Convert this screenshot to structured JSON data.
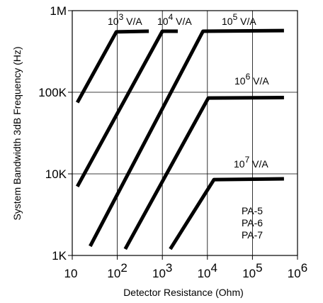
{
  "chart_data": {
    "type": "line",
    "x_scale": "log",
    "y_scale": "log",
    "xlim": [
      10,
      1000000
    ],
    "ylim": [
      1000,
      1000000
    ],
    "grid": true,
    "xlabel": "Detector Resistance (Ohm)",
    "ylabel": "System Bandwidth 3dB Frequency (Hz)",
    "x_ticks": [
      {
        "value": 10,
        "base": "10",
        "exp": ""
      },
      {
        "value": 100,
        "base": "10",
        "exp": "2"
      },
      {
        "value": 1000,
        "base": "10",
        "exp": "3"
      },
      {
        "value": 10000,
        "base": "10",
        "exp": "4"
      },
      {
        "value": 100000,
        "base": "10",
        "exp": "5"
      },
      {
        "value": 1000000,
        "base": "10",
        "exp": "6"
      }
    ],
    "y_ticks": [
      {
        "value": 1000,
        "label": "1K"
      },
      {
        "value": 10000,
        "label": "10K"
      },
      {
        "value": 100000,
        "label": "100K"
      },
      {
        "value": 1000000,
        "label": "1M"
      }
    ],
    "series": [
      {
        "base": "10",
        "exp": "3",
        "unit": "V/A",
        "points": [
          [
            13,
            75000
          ],
          [
            95,
            550000
          ],
          [
            500,
            560000
          ]
        ]
      },
      {
        "base": "10",
        "exp": "4",
        "unit": "V/A",
        "points": [
          [
            13,
            7000
          ],
          [
            1000,
            560000
          ],
          [
            2200,
            560000
          ]
        ]
      },
      {
        "base": "10",
        "exp": "5",
        "unit": "V/A",
        "points": [
          [
            25,
            1300
          ],
          [
            8000,
            560000
          ],
          [
            500000,
            570000
          ]
        ]
      },
      {
        "base": "10",
        "exp": "6",
        "unit": "V/A",
        "points": [
          [
            150,
            1200
          ],
          [
            10500,
            85000
          ],
          [
            500000,
            86000
          ]
        ]
      },
      {
        "base": "10",
        "exp": "7",
        "unit": "V/A",
        "points": [
          [
            1500,
            1200
          ],
          [
            14000,
            8500
          ],
          [
            500000,
            8700
          ]
        ]
      }
    ],
    "annotation": [
      "PA-5",
      "PA-6",
      "PA-7"
    ]
  }
}
